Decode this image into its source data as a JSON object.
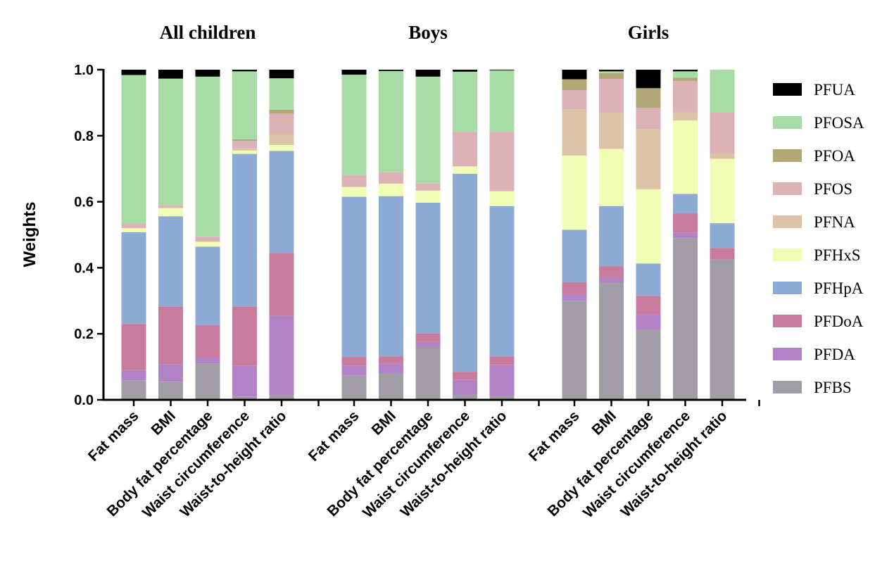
{
  "chart_data": {
    "type": "bar",
    "stacked": true,
    "ylabel": "Weights",
    "ylim": [
      0,
      1.0
    ],
    "yticks": [
      "0.0",
      "0.2",
      "0.4",
      "0.6",
      "0.8",
      "1.0"
    ],
    "legend_position": "right",
    "components": [
      {
        "name": "PFBS",
        "color": "#a09ea4"
      },
      {
        "name": "PFDA",
        "color": "#b282c6"
      },
      {
        "name": "PFDoA",
        "color": "#c97b9d"
      },
      {
        "name": "PFHpA",
        "color": "#8eabd5"
      },
      {
        "name": "PFHxS",
        "color": "#f1fcb4"
      },
      {
        "name": "PFNA",
        "color": "#dcc2a6"
      },
      {
        "name": "PFOS",
        "color": "#dcb2b6"
      },
      {
        "name": "PFOA",
        "color": "#b2a876"
      },
      {
        "name": "PFOSA",
        "color": "#a8dca6"
      },
      {
        "name": "PFUA",
        "color": "#000000"
      }
    ],
    "groups": [
      {
        "title": "All children",
        "bars": [
          {
            "label": "Fat mass",
            "values": [
              0.058,
              0.032,
              0.14,
              0.278,
              0.012,
              0.0,
              0.014,
              0.0,
              0.45,
              0.016
            ]
          },
          {
            "label": "BMI",
            "values": [
              0.055,
              0.053,
              0.175,
              0.273,
              0.025,
              0.0,
              0.008,
              0.0,
              0.384,
              0.027
            ]
          },
          {
            "label": "Body fat percentage",
            "values": [
              0.11,
              0.018,
              0.098,
              0.238,
              0.015,
              0.0,
              0.015,
              0.0,
              0.485,
              0.021
            ]
          },
          {
            "label": "Waist circumference",
            "values": [
              0.01,
              0.093,
              0.18,
              0.462,
              0.01,
              0.007,
              0.022,
              0.005,
              0.206,
              0.005
            ]
          },
          {
            "label": "Waist-to-height ratio",
            "values": [
              0.015,
              0.24,
              0.19,
              0.309,
              0.018,
              0.035,
              0.06,
              0.012,
              0.095,
              0.026
            ]
          }
        ]
      },
      {
        "title": "Boys",
        "bars": [
          {
            "label": "Fat mass",
            "values": [
              0.073,
              0.03,
              0.027,
              0.485,
              0.03,
              0.0,
              0.035,
              0.0,
              0.305,
              0.015
            ]
          },
          {
            "label": "BMI",
            "values": [
              0.08,
              0.03,
              0.022,
              0.485,
              0.038,
              0.0,
              0.035,
              0.0,
              0.306,
              0.004
            ]
          },
          {
            "label": "Body fat percentage",
            "values": [
              0.16,
              0.015,
              0.027,
              0.395,
              0.037,
              0.0,
              0.022,
              0.0,
              0.323,
              0.021
            ]
          },
          {
            "label": "Waist circumference",
            "values": [
              0.015,
              0.045,
              0.025,
              0.6,
              0.022,
              0.0,
              0.105,
              0.0,
              0.182,
              0.006
            ]
          },
          {
            "label": "Waist-to-height ratio",
            "values": [
              0.012,
              0.093,
              0.027,
              0.455,
              0.045,
              0.0,
              0.18,
              0.0,
              0.186,
              0.002
            ]
          }
        ]
      },
      {
        "title": "Girls",
        "bars": [
          {
            "label": "Fat mass",
            "values": [
              0.3,
              0.02,
              0.035,
              0.16,
              0.225,
              0.14,
              0.058,
              0.033,
              0.0,
              0.029
            ]
          },
          {
            "label": "BMI",
            "values": [
              0.355,
              0.015,
              0.035,
              0.182,
              0.173,
              0.11,
              0.102,
              0.018,
              0.005,
              0.005
            ]
          },
          {
            "label": "Body fat percentage",
            "values": [
              0.212,
              0.048,
              0.055,
              0.098,
              0.225,
              0.182,
              0.064,
              0.06,
              0.0,
              0.056
            ]
          },
          {
            "label": "Waist circumference",
            "values": [
              0.49,
              0.016,
              0.058,
              0.06,
              0.222,
              0.025,
              0.095,
              0.01,
              0.019,
              0.005
            ]
          },
          {
            "label": "Waist-to-height ratio",
            "values": [
              0.425,
              0.0,
              0.035,
              0.075,
              0.195,
              0.015,
              0.125,
              0.0,
              0.13,
              0.0
            ]
          }
        ]
      }
    ]
  }
}
